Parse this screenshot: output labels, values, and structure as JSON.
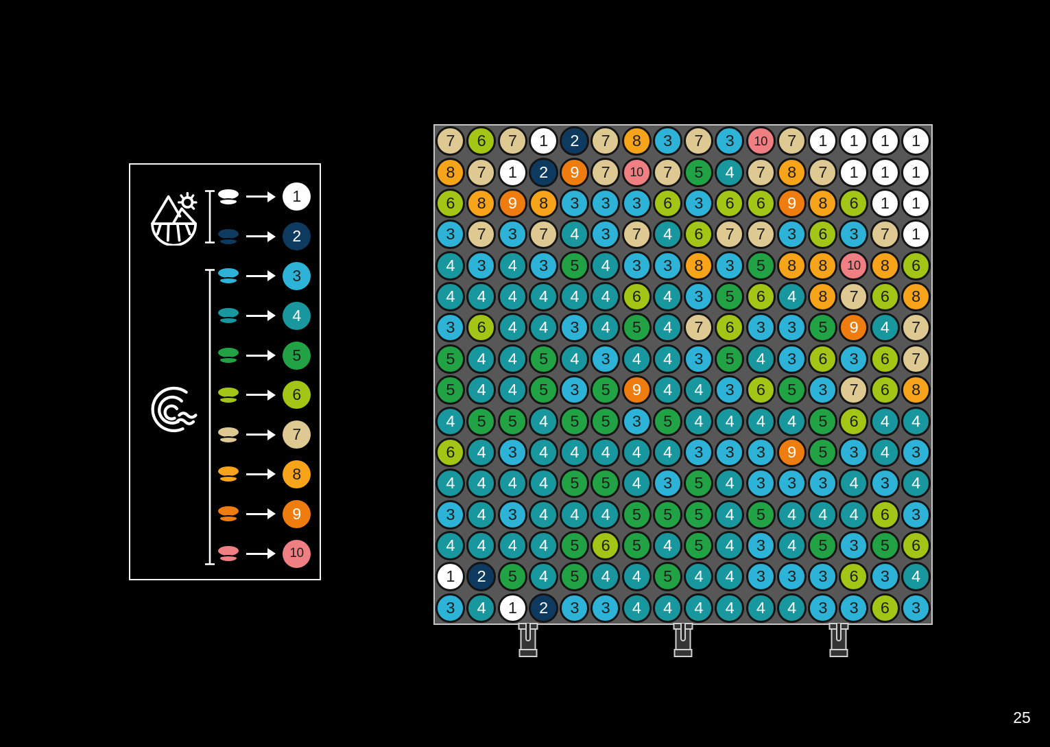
{
  "page": {
    "number": "25"
  },
  "colors": {
    "paper": "#000000",
    "frame": "#c6c6c6",
    "board-dark": "#3e3e3e",
    "board-light": "#575757",
    "ink": "#ffffff"
  },
  "palette": {
    "1": {
      "fill": "#ffffff",
      "text": "#1d1d1b"
    },
    "2": {
      "fill": "#0f3a60",
      "text": "#ffffff"
    },
    "3": {
      "fill": "#2db3d7",
      "text": "#1d1d1b"
    },
    "4": {
      "fill": "#18989e",
      "text": "#ffffff"
    },
    "5": {
      "fill": "#21a345",
      "text": "#1d1d1b"
    },
    "6": {
      "fill": "#a3c616",
      "text": "#1d1d1b"
    },
    "7": {
      "fill": "#dfc993",
      "text": "#1d1d1b"
    },
    "8": {
      "fill": "#f7a41a",
      "text": "#1d1d1b"
    },
    "9": {
      "fill": "#ee7c0f",
      "text": "#ffffff"
    },
    "10": {
      "fill": "#ef7f83",
      "text": "#1d1d1b"
    }
  },
  "legend": {
    "groups": [
      {
        "icon": "landscape-sun-icon",
        "values": [
          "1",
          "2"
        ]
      },
      {
        "icon": "wave-icon",
        "values": [
          "3",
          "4",
          "5",
          "6",
          "7",
          "8",
          "9",
          "10"
        ]
      }
    ],
    "entries": [
      {
        "value": "1"
      },
      {
        "value": "2"
      },
      {
        "value": "3"
      },
      {
        "value": "4"
      },
      {
        "value": "5"
      },
      {
        "value": "6"
      },
      {
        "value": "7"
      },
      {
        "value": "8"
      },
      {
        "value": "9"
      },
      {
        "value": "10"
      }
    ]
  },
  "board": {
    "rows": 16,
    "cols": 16,
    "clip_count": 3,
    "grid": [
      [
        7,
        6,
        7,
        1,
        2,
        7,
        8,
        3,
        7,
        3,
        10,
        7,
        1,
        1,
        1,
        1
      ],
      [
        8,
        7,
        1,
        2,
        9,
        7,
        10,
        7,
        5,
        4,
        7,
        8,
        7,
        1,
        1,
        1
      ],
      [
        6,
        8,
        9,
        8,
        3,
        3,
        3,
        6,
        3,
        6,
        6,
        9,
        8,
        6,
        1,
        1
      ],
      [
        3,
        7,
        3,
        7,
        4,
        3,
        7,
        4,
        6,
        7,
        7,
        3,
        6,
        3,
        7,
        1
      ],
      [
        4,
        3,
        4,
        3,
        5,
        4,
        3,
        3,
        8,
        3,
        5,
        8,
        8,
        10,
        8,
        6
      ],
      [
        4,
        4,
        4,
        4,
        4,
        4,
        6,
        4,
        3,
        5,
        6,
        4,
        8,
        7,
        6,
        8
      ],
      [
        3,
        6,
        4,
        4,
        3,
        4,
        5,
        4,
        7,
        6,
        3,
        3,
        5,
        9,
        4,
        7
      ],
      [
        5,
        4,
        4,
        5,
        4,
        3,
        4,
        4,
        3,
        5,
        4,
        3,
        6,
        3,
        6,
        7
      ],
      [
        5,
        4,
        4,
        5,
        3,
        5,
        9,
        4,
        4,
        3,
        6,
        5,
        3,
        7,
        6,
        8
      ],
      [
        4,
        5,
        5,
        4,
        5,
        5,
        3,
        5,
        4,
        4,
        4,
        4,
        5,
        6,
        4,
        4
      ],
      [
        6,
        4,
        3,
        4,
        4,
        4,
        4,
        4,
        3,
        3,
        3,
        9,
        5,
        3,
        4,
        3
      ],
      [
        4,
        4,
        4,
        4,
        5,
        5,
        4,
        3,
        5,
        4,
        3,
        3,
        3,
        4,
        3,
        4
      ],
      [
        3,
        4,
        3,
        4,
        4,
        4,
        5,
        5,
        5,
        4,
        5,
        4,
        4,
        4,
        6,
        3
      ],
      [
        4,
        4,
        4,
        4,
        5,
        6,
        5,
        4,
        5,
        4,
        3,
        4,
        5,
        3,
        5,
        6
      ],
      [
        1,
        2,
        5,
        4,
        5,
        4,
        4,
        5,
        4,
        4,
        3,
        3,
        3,
        6,
        3,
        4
      ],
      [
        3,
        4,
        1,
        2,
        3,
        3,
        4,
        4,
        4,
        4,
        4,
        4,
        3,
        3,
        6,
        3
      ]
    ]
  }
}
